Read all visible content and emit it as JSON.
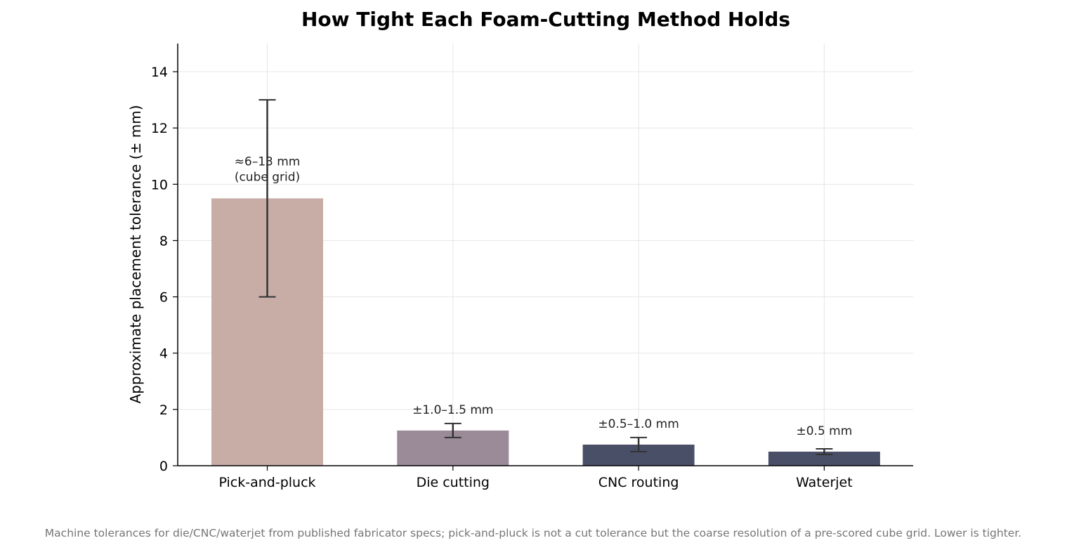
{
  "chart_data": {
    "type": "bar",
    "title": "How Tight Each Foam-Cutting Method Holds",
    "ylabel": "Approximate placement tolerance (± mm)",
    "xlabel": "",
    "ylim": [
      0,
      15
    ],
    "yticks": [
      0,
      2,
      4,
      6,
      8,
      10,
      12,
      14
    ],
    "grid": true,
    "categories": [
      "Pick-and-pluck",
      "Die cutting",
      "CNC routing",
      "Waterjet"
    ],
    "values": [
      9.5,
      1.25,
      0.75,
      0.5
    ],
    "error_low": [
      6.0,
      1.0,
      0.5,
      0.4
    ],
    "error_high": [
      13.0,
      1.5,
      1.0,
      0.6
    ],
    "colors": [
      "#c8ada7",
      "#9b8a98",
      "#4a4f68",
      "#4a4f68"
    ],
    "annotations": [
      [
        "≈6–13 mm",
        "(cube grid)"
      ],
      [
        "±1.0–1.5 mm"
      ],
      [
        "±0.5–1.0 mm"
      ],
      [
        "±0.5 mm"
      ]
    ],
    "caption": "Machine tolerances for die/CNC/waterjet from published fabricator specs; pick-and-pluck is not a cut tolerance but the coarse resolution of a pre-scored cube grid. Lower is tighter."
  }
}
